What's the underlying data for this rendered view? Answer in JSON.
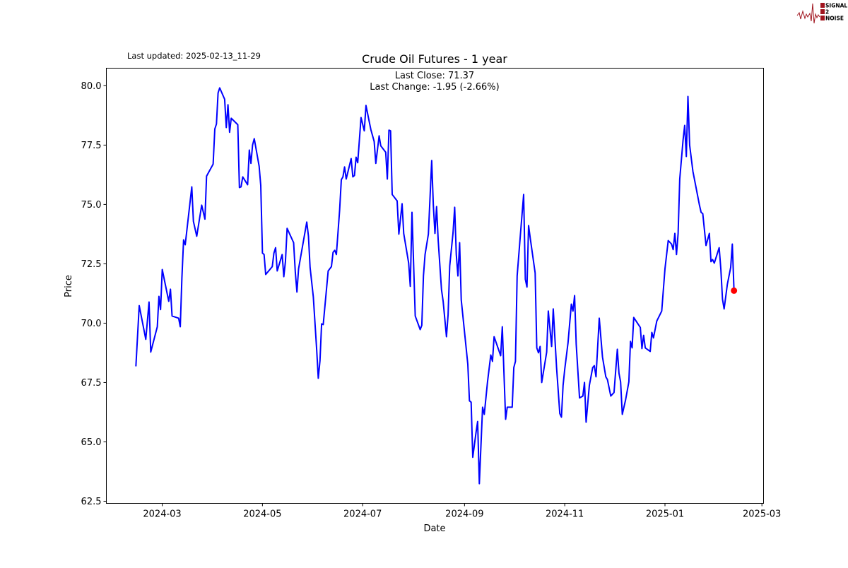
{
  "header": {
    "last_updated": "Last updated: 2025-02-13_11-29",
    "logo_text": [
      "SIGNAL",
      "2",
      "NOISE"
    ]
  },
  "chart_data": {
    "type": "line",
    "title": "Crude Oil Futures - 1 year",
    "xlabel": "Date",
    "ylabel": "Price",
    "annotations": [
      "Last Close: 71.37",
      "Last Change: -1.95 (-2.66%)"
    ],
    "xlim": [
      "2024-01-27",
      "2025-03-02"
    ],
    "ylim": [
      62.41,
      80.74
    ],
    "x_ticks": [
      "2024-03",
      "2024-05",
      "2024-07",
      "2024-09",
      "2024-11",
      "2025-01",
      "2025-03"
    ],
    "y_ticks": [
      "62.5",
      "65.0",
      "67.5",
      "70.0",
      "72.5",
      "75.0",
      "77.5",
      "80.0"
    ],
    "grid": false,
    "line_color": "#0000ff",
    "marker_color": "#ff0000",
    "last_point": {
      "x": "2025-02-12",
      "y": 71.37
    },
    "series": [
      {
        "x": [
          "2024-02-14",
          "2024-02-16",
          "2024-02-20",
          "2024-02-22",
          "2024-02-23",
          "2024-02-27",
          "2024-02-28",
          "2024-02-29",
          "2024-03-01",
          "2024-03-05",
          "2024-03-06",
          "2024-03-07",
          "2024-03-11",
          "2024-03-12",
          "2024-03-13",
          "2024-03-14",
          "2024-03-15",
          "2024-03-19",
          "2024-03-20",
          "2024-03-22",
          "2024-03-25",
          "2024-03-27",
          "2024-03-28",
          "2024-04-01",
          "2024-04-02",
          "2024-04-03",
          "2024-04-04",
          "2024-04-05",
          "2024-04-08",
          "2024-04-09",
          "2024-04-10",
          "2024-04-11",
          "2024-04-12",
          "2024-04-16",
          "2024-04-17",
          "2024-04-18",
          "2024-04-19",
          "2024-04-22",
          "2024-04-23",
          "2024-04-24",
          "2024-04-25",
          "2024-04-26",
          "2024-04-29",
          "2024-04-30",
          "2024-05-01",
          "2024-05-02",
          "2024-05-03",
          "2024-05-07",
          "2024-05-08",
          "2024-05-09",
          "2024-05-10",
          "2024-05-13",
          "2024-05-14",
          "2024-05-15",
          "2024-05-16",
          "2024-05-20",
          "2024-05-21",
          "2024-05-22",
          "2024-05-23",
          "2024-05-28",
          "2024-05-29",
          "2024-05-30",
          "2024-06-01",
          "2024-06-03",
          "2024-06-04",
          "2024-06-05",
          "2024-06-06",
          "2024-06-07",
          "2024-06-10",
          "2024-06-12",
          "2024-06-13",
          "2024-06-14",
          "2024-06-15",
          "2024-06-17",
          "2024-06-18",
          "2024-06-19",
          "2024-06-20",
          "2024-06-21",
          "2024-06-24",
          "2024-06-25",
          "2024-06-26",
          "2024-06-27",
          "2024-06-28",
          "2024-06-30",
          "2024-07-02",
          "2024-07-03",
          "2024-07-06",
          "2024-07-08",
          "2024-07-09",
          "2024-07-11",
          "2024-07-12",
          "2024-07-15",
          "2024-07-16",
          "2024-07-17",
          "2024-07-18",
          "2024-07-19",
          "2024-07-22",
          "2024-07-23",
          "2024-07-25",
          "2024-07-26",
          "2024-07-29",
          "2024-07-30",
          "2024-07-31",
          "2024-08-02",
          "2024-08-05",
          "2024-08-06",
          "2024-08-07",
          "2024-08-08",
          "2024-08-10",
          "2024-08-12",
          "2024-08-13",
          "2024-08-14",
          "2024-08-15",
          "2024-08-16",
          "2024-08-18",
          "2024-08-19",
          "2024-08-21",
          "2024-08-22",
          "2024-08-23",
          "2024-08-25",
          "2024-08-26",
          "2024-08-27",
          "2024-08-28",
          "2024-08-29",
          "2024-08-30",
          "2024-09-03",
          "2024-09-04",
          "2024-09-05",
          "2024-09-06",
          "2024-09-08",
          "2024-09-09",
          "2024-09-10",
          "2024-09-12",
          "2024-09-13",
          "2024-09-15",
          "2024-09-17",
          "2024-09-18",
          "2024-09-19",
          "2024-09-23",
          "2024-09-24",
          "2024-09-26",
          "2024-09-27",
          "2024-09-30",
          "2024-10-01",
          "2024-10-02",
          "2024-10-03",
          "2024-10-05",
          "2024-10-07",
          "2024-10-08",
          "2024-10-09",
          "2024-10-10",
          "2024-10-11",
          "2024-10-14",
          "2024-10-15",
          "2024-10-16",
          "2024-10-17",
          "2024-10-18",
          "2024-10-21",
          "2024-10-22",
          "2024-10-24",
          "2024-10-25",
          "2024-10-27",
          "2024-10-29",
          "2024-10-30",
          "2024-10-31",
          "2024-11-01",
          "2024-11-03",
          "2024-11-05",
          "2024-11-06",
          "2024-11-07",
          "2024-11-08",
          "2024-11-10",
          "2024-11-12",
          "2024-11-13",
          "2024-11-14",
          "2024-11-16",
          "2024-11-18",
          "2024-11-19",
          "2024-11-20",
          "2024-11-22",
          "2024-11-24",
          "2024-11-26",
          "2024-11-27",
          "2024-11-29",
          "2024-12-01",
          "2024-12-03",
          "2024-12-04",
          "2024-12-05",
          "2024-12-06",
          "2024-12-08",
          "2024-12-10",
          "2024-12-11",
          "2024-12-12",
          "2024-12-13",
          "2024-12-17",
          "2024-12-18",
          "2024-12-19",
          "2024-12-20",
          "2024-12-23",
          "2024-12-24",
          "2024-12-25",
          "2024-12-27",
          "2024-12-30",
          "2025-01-01",
          "2025-01-03",
          "2025-01-05",
          "2025-01-06",
          "2025-01-07",
          "2025-01-08",
          "2025-01-09",
          "2025-01-10",
          "2025-01-12",
          "2025-01-13",
          "2025-01-14",
          "2025-01-15",
          "2025-01-16",
          "2025-01-18",
          "2025-01-22",
          "2025-01-23",
          "2025-01-24",
          "2025-01-26",
          "2025-01-28",
          "2025-01-29",
          "2025-01-30",
          "2025-01-31",
          "2025-02-03",
          "2025-02-04",
          "2025-02-05",
          "2025-02-06",
          "2025-02-08",
          "2025-02-10",
          "2025-02-11",
          "2025-02-12"
        ],
        "y": [
          68.18,
          70.74,
          69.32,
          70.89,
          68.78,
          69.85,
          71.13,
          70.57,
          72.26,
          70.92,
          71.43,
          70.3,
          70.21,
          69.85,
          71.9,
          73.51,
          73.3,
          75.74,
          74.29,
          73.66,
          74.97,
          74.38,
          76.19,
          76.7,
          78.18,
          78.39,
          79.7,
          79.91,
          79.43,
          78.24,
          79.2,
          78.04,
          78.63,
          78.36,
          75.71,
          75.74,
          76.16,
          75.83,
          77.29,
          76.73,
          77.5,
          77.77,
          76.61,
          75.8,
          72.95,
          72.89,
          72.05,
          72.38,
          72.95,
          73.18,
          72.2,
          72.89,
          71.96,
          72.59,
          73.99,
          73.39,
          72.14,
          71.31,
          72.29,
          74.26,
          73.66,
          72.35,
          71.1,
          68.9,
          67.68,
          68.42,
          69.97,
          69.94,
          72.2,
          72.38,
          72.98,
          73.07,
          72.89,
          74.76,
          76.04,
          76.16,
          76.58,
          76.07,
          76.93,
          76.16,
          76.22,
          76.99,
          76.76,
          78.66,
          78.1,
          79.17,
          78.15,
          77.65,
          76.73,
          77.89,
          77.47,
          77.2,
          76.07,
          78.13,
          78.1,
          75.42,
          75.15,
          73.75,
          75.03,
          73.78,
          72.53,
          71.55,
          74.67,
          70.3,
          69.73,
          69.91,
          71.99,
          72.89,
          73.75,
          76.85,
          74.97,
          73.78,
          74.91,
          73.48,
          71.4,
          70.92,
          69.43,
          70.36,
          72.41,
          73.81,
          74.88,
          72.89,
          71.99,
          73.39,
          70.98,
          68.27,
          66.73,
          66.67,
          64.35,
          65.39,
          65.86,
          63.24,
          66.46,
          66.16,
          67.53,
          68.66,
          68.39,
          69.43,
          68.63,
          69.85,
          65.95,
          66.46,
          66.46,
          68.13,
          68.39,
          71.99,
          73.72,
          75.42,
          71.85,
          71.52,
          74.11,
          73.57,
          72.11,
          68.96,
          68.75,
          69.02,
          67.5,
          68.78,
          70.51,
          69.02,
          70.6,
          68.13,
          66.19,
          66.04,
          67.38,
          68.07,
          69.17,
          70.8,
          70.51,
          71.16,
          69.11,
          66.85,
          66.93,
          67.5,
          65.83,
          67.38,
          68.13,
          68.21,
          67.74,
          70.21,
          68.57,
          67.74,
          67.62,
          66.93,
          67.08,
          68.9,
          67.89,
          67.53,
          66.16,
          66.76,
          67.53,
          69.23,
          68.96,
          70.24,
          69.82,
          68.93,
          69.49,
          68.96,
          68.81,
          69.61,
          69.38,
          70.09,
          70.51,
          72.29,
          73.48,
          73.33,
          73.1,
          73.78,
          72.89,
          73.78,
          76.07,
          77.71,
          78.33,
          77.02,
          79.55,
          77.5,
          76.4,
          74.97,
          74.67,
          74.61,
          73.27,
          73.78,
          72.59,
          72.68,
          72.53,
          73.18,
          72.26,
          71.01,
          70.6,
          71.64,
          72.35,
          73.33,
          71.37
        ]
      }
    ]
  }
}
